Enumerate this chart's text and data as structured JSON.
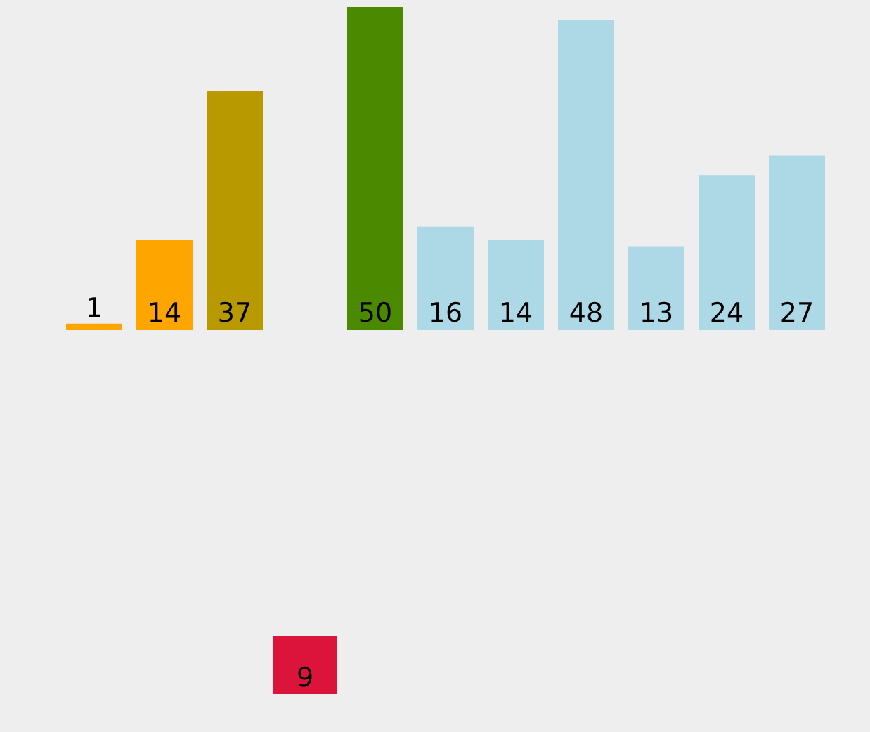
{
  "chart_data": [
    {
      "type": "bar",
      "categories": [
        null,
        null,
        null
      ],
      "values": [
        1,
        14,
        37
      ],
      "colors": [
        "#ffa500",
        "#ffa500",
        "#b89a00"
      ],
      "data_labels": true,
      "tick_labels": false
    },
    {
      "type": "other",
      "categories": [
        null
      ],
      "values": [
        9
      ],
      "colors": [
        "#dc143c"
      ],
      "data_labels": true
    },
    {
      "type": "bar",
      "categories": [
        null,
        null,
        null,
        null,
        null,
        null,
        null
      ],
      "values": [
        50,
        16,
        14,
        48,
        13,
        24,
        27
      ],
      "colors": [
        "#4b8a00",
        "#add8e6",
        "#add8e6",
        "#add8e6",
        "#add8e6",
        "#add8e6",
        "#add8e6"
      ],
      "data_labels": true,
      "tick_labels": false
    }
  ]
}
